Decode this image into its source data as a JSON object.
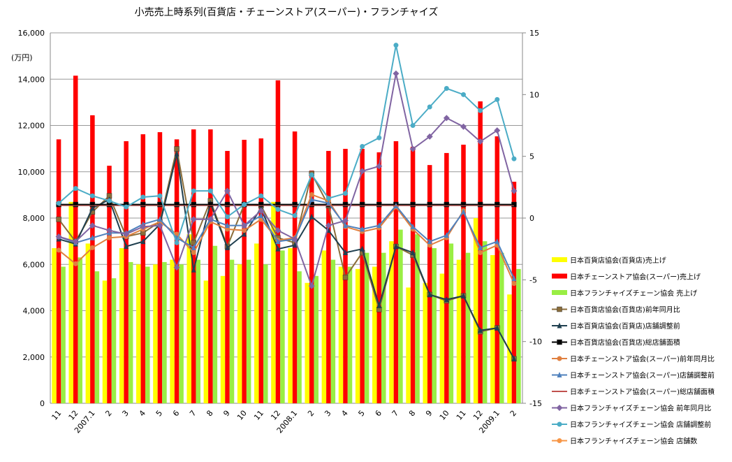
{
  "chart_data": {
    "type": "bar-line",
    "title": "小売売上時系列(百貨店・チェーンストア(スーパー)・フランチャイズ",
    "ylabel": "(万円)",
    "categories": [
      "11",
      "12",
      "2007.1",
      "2",
      "3",
      "4",
      "5",
      "6",
      "7",
      "8",
      "9",
      "10",
      "11",
      "12",
      "2008.1",
      "2",
      "3",
      "4",
      "5",
      "6",
      "7",
      "8",
      "9",
      "10",
      "11",
      "12",
      "2009.1",
      "2"
    ],
    "ylim": [
      0,
      16000
    ],
    "yticks": [
      0,
      {
        "value": 2000,
        "label": "2,000"
      },
      {
        "value": 4000,
        "label": "4,000"
      },
      {
        "value": 6000,
        "label": "6,000"
      },
      {
        "value": 8000,
        "label": "8,000"
      },
      {
        "value": 10000,
        "label": "10,000"
      },
      {
        "value": 12000,
        "label": "12,000"
      },
      {
        "value": 14000,
        "label": "14,000"
      },
      {
        "value": 16000,
        "label": "16,000"
      }
    ],
    "y2lim": [
      -15,
      15
    ],
    "y2ticks": [
      -15,
      -10,
      -5,
      0,
      5,
      10,
      15
    ],
    "grid": true,
    "series": [
      {
        "name": "日本百貨店協会(百貨店)売上げ",
        "type": "bar",
        "color": "#ffff00",
        "values": [
          6700,
          8700,
          6900,
          5300,
          6700,
          6000,
          6000,
          6200,
          7300,
          5300,
          5500,
          6000,
          6900,
          8700,
          6700,
          5200,
          6600,
          5900,
          5800,
          5900,
          7000,
          5000,
          5200,
          5600,
          6200,
          8000,
          6400,
          4700
        ]
      },
      {
        "name": "日本チェーンストア協会(スーパー)売上げ",
        "type": "bar",
        "color": "#ff0000",
        "values": [
          11400,
          14150,
          12440,
          10260,
          11320,
          11620,
          11710,
          11400,
          11830,
          11830,
          10900,
          11380,
          11440,
          13950,
          11740,
          10050,
          10900,
          10990,
          10990,
          10840,
          11320,
          11080,
          10290,
          10810,
          11170,
          13040,
          11530,
          9570
        ]
      },
      {
        "name": "日本フランチャイズチェーン協会 売上げ",
        "type": "bar",
        "color": "#99ee44",
        "values": [
          5900,
          6300,
          5700,
          5400,
          6100,
          5900,
          6100,
          6000,
          6200,
          6800,
          6200,
          6200,
          6000,
          6600,
          5700,
          5500,
          6200,
          5900,
          6500,
          6500,
          7500,
          7300,
          6700,
          6900,
          6500,
          7000,
          6500,
          5800
        ]
      },
      {
        "name": "日本百貨店協会(百貨店)前年同月比",
        "type": "line",
        "axis": "y2",
        "color": "#8b6d3a",
        "marker": "square",
        "values": [
          -0.1,
          -1.9,
          0.5,
          1.8,
          -1.5,
          -1.2,
          -0.3,
          5.6,
          -2.0,
          1.4,
          -2.3,
          1.1,
          1.0,
          -1.6,
          -2.0,
          3.6,
          1.0,
          -4.8,
          -2.8,
          -7.4,
          -2.3,
          -3.0,
          -6.2,
          -6.7,
          -6.3,
          -9.2,
          -8.9,
          -11.4
        ]
      },
      {
        "name": "日本百貨店協会(百貨店)店舗調整前",
        "type": "line",
        "axis": "y2",
        "color": "#1f3f4f",
        "marker": "triangle",
        "values": [
          -1.7,
          -2.1,
          0.8,
          1.5,
          -2.3,
          -1.9,
          -0.5,
          5.2,
          -4.2,
          1.2,
          -2.4,
          -1.3,
          0.8,
          -2.5,
          -2.2,
          0.1,
          -1.0,
          -2.8,
          -2.5,
          -7.1,
          -2.3,
          -2.8,
          -6.2,
          -6.6,
          -6.3,
          -9.1,
          -8.9,
          -11.4
        ]
      },
      {
        "name": "日本百貨店協会(百貨店)総店舗面積",
        "type": "line",
        "axis": "y2",
        "color": "#000000",
        "marker": "square",
        "values": [
          1.1,
          1.1,
          1.1,
          1.1,
          1.1,
          1.1,
          1.1,
          1.1,
          1.1,
          1.1,
          1.1,
          1.1,
          1.1,
          1.1,
          1.1,
          1.1,
          1.1,
          1.1,
          1.1,
          1.1,
          1.1,
          1.1,
          1.1,
          1.1,
          1.1,
          1.1,
          1.1,
          1.1
        ]
      },
      {
        "name": "日本チェーンストア協会(スーパー)前年同月比",
        "type": "line",
        "axis": "y2",
        "color": "#e08040",
        "marker": "circle",
        "values": [
          -2.6,
          -3.7,
          -2.4,
          -1.6,
          -1.5,
          -0.9,
          -0.3,
          -1.3,
          -2.8,
          -0.3,
          -0.9,
          -1.0,
          -0.1,
          -1.8,
          -1.6,
          1.9,
          1.4,
          -0.7,
          -1.1,
          -0.8,
          0.9,
          -0.9,
          -2.2,
          -1.6,
          0.6,
          -2.8,
          -2.2,
          -5.3
        ]
      },
      {
        "name": "日本チェーンストア協会(スーパー)店舗調整前",
        "type": "line",
        "axis": "y2",
        "color": "#4f81bd",
        "marker": "triangle",
        "values": [
          -1.5,
          -2.0,
          -1.6,
          -1.2,
          -1.2,
          -0.5,
          -0.1,
          -1.6,
          -2.4,
          -0.1,
          -0.6,
          -0.6,
          0.2,
          -1.9,
          -1.7,
          1.5,
          1.2,
          -0.6,
          -0.9,
          -0.6,
          1.0,
          -0.7,
          -1.9,
          -1.4,
          0.5,
          -2.4,
          -1.9,
          -4.9
        ]
      },
      {
        "name": "日本チェーンストア協会(スーパー)総店舗面積",
        "type": "line",
        "axis": "y2",
        "color": "#c0504d",
        "marker": "none",
        "values": [
          1.0,
          1.0,
          1.0,
          1.0,
          1.0,
          1.0,
          1.0,
          1.0,
          1.0,
          1.0,
          1.0,
          1.0,
          1.0,
          1.0,
          1.0,
          1.0,
          1.0,
          1.0,
          1.0,
          1.0,
          1.0,
          1.0,
          1.0,
          1.0,
          1.0,
          1.0,
          1.0,
          1.0
        ]
      },
      {
        "name": "日本フランチャイズチェーン協会 前年同月比",
        "type": "line",
        "axis": "y2",
        "color": "#8064a2",
        "marker": "diamond",
        "values": [
          -1.5,
          -1.9,
          -0.6,
          -1.0,
          -1.3,
          -0.7,
          -0.6,
          -4.0,
          -0.1,
          -0.1,
          2.2,
          -0.6,
          0.6,
          -1.0,
          -1.7,
          -5.5,
          -0.6,
          -0.2,
          3.8,
          4.2,
          11.7,
          5.6,
          6.6,
          8.1,
          7.4,
          6.2,
          7.1,
          2.2
        ]
      },
      {
        "name": "日本フランチャイズチェーン協会 店舗調整前",
        "type": "line",
        "axis": "y2",
        "color": "#4bacc6",
        "marker": "circle",
        "values": [
          1.2,
          2.4,
          1.8,
          1.4,
          0.9,
          1.7,
          1.8,
          -2.0,
          2.2,
          2.2,
          0.1,
          1.1,
          1.8,
          0.7,
          0.2,
          3.5,
          1.6,
          2.0,
          5.8,
          6.5,
          14.0,
          7.5,
          9.0,
          10.5,
          10.0,
          8.7,
          9.6,
          4.8
        ]
      },
      {
        "name": "日本フランチャイズチェーン協会 店舗数",
        "type": "line",
        "axis": "y2",
        "color": "#f79646",
        "marker": "circle",
        "values": [
          null,
          null,
          null,
          null,
          null,
          null,
          null,
          null,
          null,
          null,
          null,
          null,
          null,
          null,
          null,
          null,
          null,
          null,
          null,
          null,
          null,
          null,
          null,
          null,
          null,
          null,
          null,
          null
        ]
      }
    ]
  }
}
